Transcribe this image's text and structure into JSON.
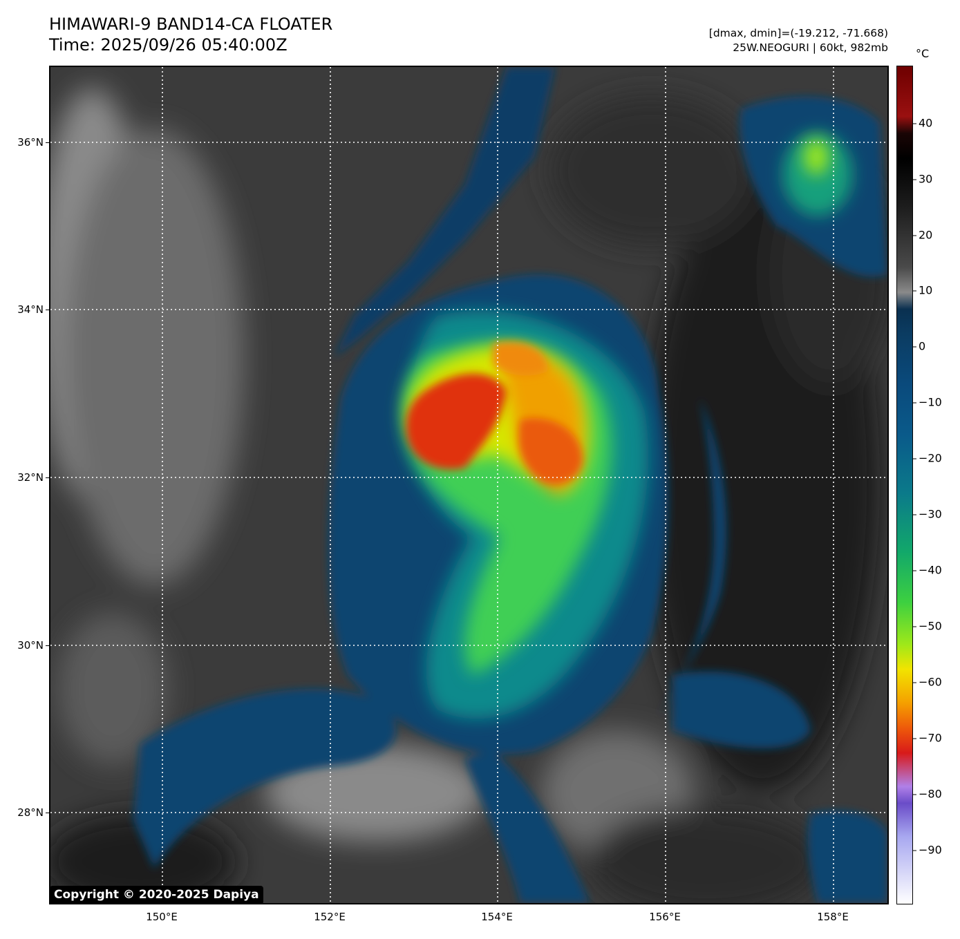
{
  "header": {
    "title_line1": "HIMAWARI-9 BAND14-CA FLOATER",
    "title_line2": "Time: 2025/09/26 05:40:00Z",
    "info_line1": "[dmax, dmin]=(-19.212, -71.668)",
    "info_line2": "25W.NEOGURI | 60kt, 982mb"
  },
  "map": {
    "lat_labels": [
      "36°N",
      "34°N",
      "32°N",
      "30°N",
      "28°N"
    ],
    "lon_labels": [
      "150°E",
      "152°E",
      "154°E",
      "156°E",
      "158°E"
    ],
    "gridlines": "dotted white",
    "storm_name": "25W.NEOGURI"
  },
  "colorbar": {
    "unit": "°C",
    "ticks": [
      "40",
      "30",
      "20",
      "10",
      "0",
      "−10",
      "−20",
      "−30",
      "−40",
      "−50",
      "−60",
      "−70",
      "−80",
      "−90"
    ]
  },
  "footer": {
    "copyright": "Copyright © 2020-2025 Dapiya"
  }
}
